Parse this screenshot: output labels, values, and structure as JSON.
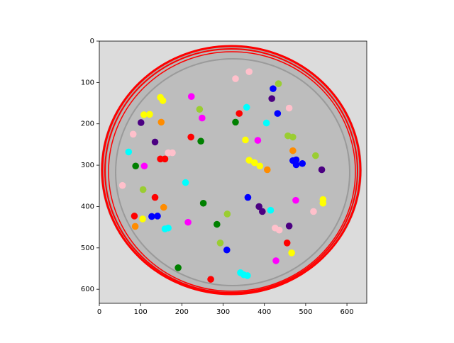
{
  "chart_data": {
    "type": "scatter",
    "xlim": [
      0,
      648
    ],
    "ylim": [
      634,
      0
    ],
    "xticks": [
      0,
      100,
      200,
      300,
      400,
      500,
      600
    ],
    "yticks": [
      0,
      100,
      200,
      300,
      400,
      500,
      600
    ],
    "series": [
      {
        "color": "#ff0000",
        "x": [
          339,
          222,
          148,
          159,
          135,
          85,
          455,
          270
        ],
        "y": [
          175,
          232,
          285,
          285,
          378,
          423,
          488,
          576
        ]
      },
      {
        "color": "#ff00ff",
        "x": [
          223,
          249,
          384,
          109,
          476,
          215,
          428
        ],
        "y": [
          134,
          186,
          240,
          302,
          385,
          438,
          531
        ]
      },
      {
        "color": "#ffc0cb",
        "x": [
          330,
          363,
          460,
          82,
          167,
          177,
          56,
          519,
          426,
          436
        ],
        "y": [
          91,
          74,
          162,
          225,
          270,
          270,
          349,
          412,
          452,
          457
        ]
      },
      {
        "color": "#0000ff",
        "x": [
          421,
          432,
          469,
          477,
          477,
          492,
          360,
          127,
          141,
          309
        ],
        "y": [
          115,
          175,
          289,
          287,
          299,
          296,
          378,
          424,
          423,
          505
        ]
      },
      {
        "color": "#9acd32",
        "x": [
          434,
          243,
          457,
          469,
          524,
          106,
          310,
          293
        ],
        "y": [
          103,
          165,
          229,
          232,
          277,
          359,
          418,
          488
        ]
      },
      {
        "color": "#4b0082",
        "x": [
          418,
          101,
          135,
          539,
          387,
          395,
          460
        ],
        "y": [
          139,
          197,
          244,
          311,
          400,
          412,
          447
        ]
      },
      {
        "color": "#ffff00",
        "x": [
          148,
          154,
          108,
          122,
          354,
          363,
          376,
          389,
          542,
          542,
          105,
          466
        ],
        "y": [
          136,
          144,
          178,
          177,
          239,
          288,
          294,
          302,
          383,
          392,
          430,
          512
        ]
      },
      {
        "color": "#00ffff",
        "x": [
          357,
          405,
          71,
          209,
          415,
          159,
          167,
          342,
          350,
          359
        ],
        "y": [
          160,
          198,
          268,
          342,
          409,
          454,
          452,
          560,
          565,
          567
        ]
      },
      {
        "color": "#008000",
        "x": [
          330,
          246,
          88,
          252,
          285,
          191
        ],
        "y": [
          196,
          242,
          302,
          392,
          443,
          548
        ]
      },
      {
        "color": "#ff8c00",
        "x": [
          150,
          469,
          407,
          156,
          87
        ],
        "y": [
          196,
          265,
          311,
          402,
          448
        ]
      }
    ]
  }
}
